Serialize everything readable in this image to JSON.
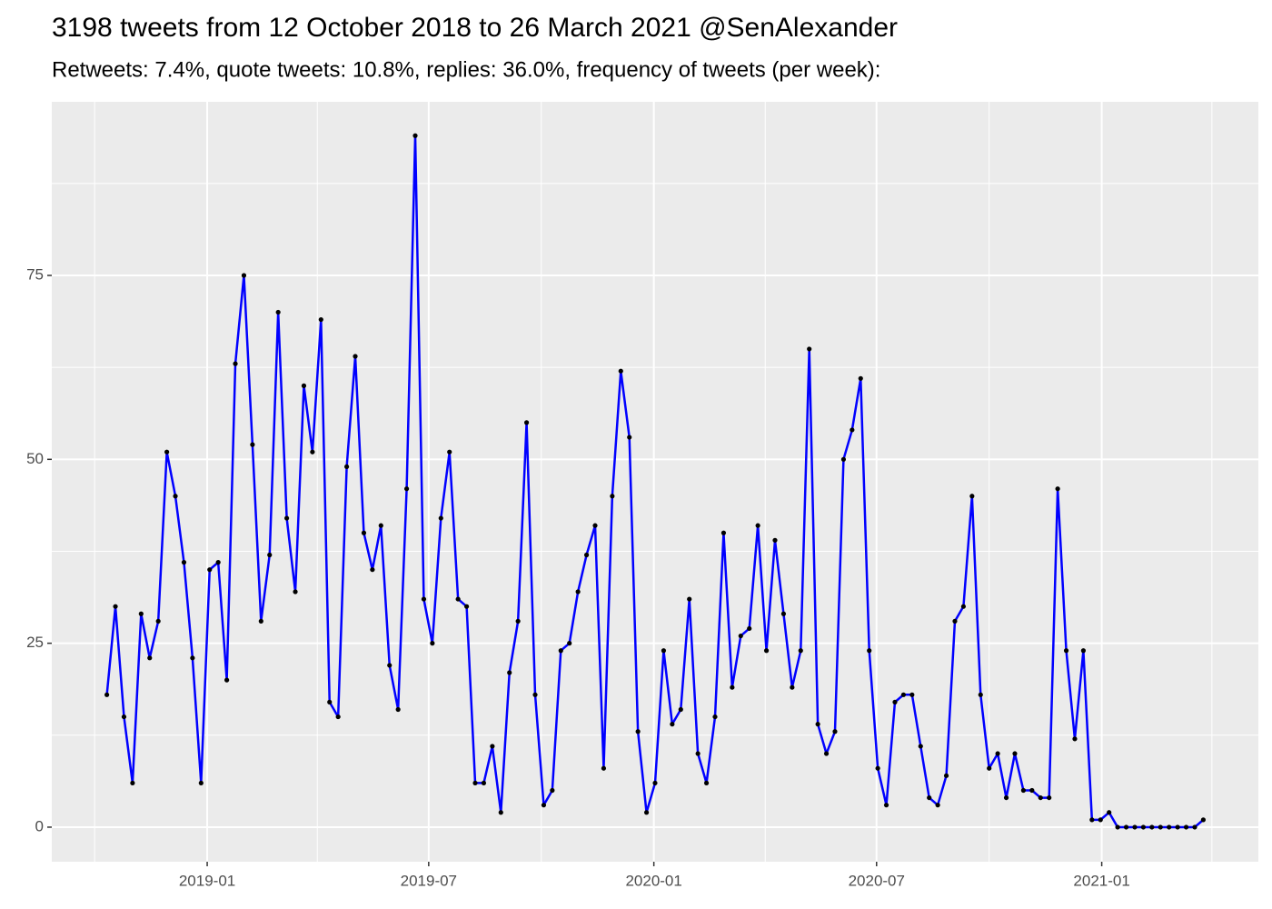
{
  "chart_data": {
    "type": "line",
    "title": "3198 tweets from 12 October 2018 to 26 March 2021 @SenAlexander",
    "subtitle": "Retweets: 7.4%, quote tweets: 10.8%, replies: 36.0%, frequency of tweets (per week):",
    "x": [
      "2018-10-11",
      "2018-10-18",
      "2018-10-25",
      "2018-11-01",
      "2018-11-08",
      "2018-11-15",
      "2018-11-22",
      "2018-11-29",
      "2018-12-06",
      "2018-12-13",
      "2018-12-20",
      "2018-12-27",
      "2019-01-03",
      "2019-01-10",
      "2019-01-17",
      "2019-01-24",
      "2019-01-31",
      "2019-02-07",
      "2019-02-14",
      "2019-02-21",
      "2019-02-28",
      "2019-03-07",
      "2019-03-14",
      "2019-03-21",
      "2019-03-28",
      "2019-04-04",
      "2019-04-11",
      "2019-04-18",
      "2019-04-25",
      "2019-05-02",
      "2019-05-09",
      "2019-05-16",
      "2019-05-23",
      "2019-05-30",
      "2019-06-06",
      "2019-06-13",
      "2019-06-20",
      "2019-06-27",
      "2019-07-04",
      "2019-07-11",
      "2019-07-18",
      "2019-07-25",
      "2019-08-01",
      "2019-08-08",
      "2019-08-15",
      "2019-08-22",
      "2019-08-29",
      "2019-09-05",
      "2019-09-12",
      "2019-09-19",
      "2019-09-26",
      "2019-10-03",
      "2019-10-10",
      "2019-10-17",
      "2019-10-24",
      "2019-10-31",
      "2019-11-07",
      "2019-11-14",
      "2019-11-21",
      "2019-11-28",
      "2019-12-05",
      "2019-12-12",
      "2019-12-19",
      "2019-12-26",
      "2020-01-02",
      "2020-01-09",
      "2020-01-16",
      "2020-01-23",
      "2020-01-30",
      "2020-02-06",
      "2020-02-13",
      "2020-02-20",
      "2020-02-27",
      "2020-03-05",
      "2020-03-12",
      "2020-03-19",
      "2020-03-26",
      "2020-04-02",
      "2020-04-09",
      "2020-04-16",
      "2020-04-23",
      "2020-04-30",
      "2020-05-07",
      "2020-05-14",
      "2020-05-21",
      "2020-05-28",
      "2020-06-04",
      "2020-06-11",
      "2020-06-18",
      "2020-06-25",
      "2020-07-02",
      "2020-07-09",
      "2020-07-16",
      "2020-07-23",
      "2020-07-30",
      "2020-08-06",
      "2020-08-13",
      "2020-08-20",
      "2020-08-27",
      "2020-09-03",
      "2020-09-10",
      "2020-09-17",
      "2020-09-24",
      "2020-10-01",
      "2020-10-08",
      "2020-10-15",
      "2020-10-22",
      "2020-10-29",
      "2020-11-05",
      "2020-11-12",
      "2020-11-19",
      "2020-11-26",
      "2020-12-03",
      "2020-12-10",
      "2020-12-17",
      "2020-12-24",
      "2020-12-31",
      "2021-01-07",
      "2021-01-14",
      "2021-01-21",
      "2021-01-28",
      "2021-02-04",
      "2021-02-11",
      "2021-02-18",
      "2021-02-25",
      "2021-03-04",
      "2021-03-11",
      "2021-03-18",
      "2021-03-25"
    ],
    "values": [
      18,
      30,
      15,
      6,
      29,
      23,
      28,
      51,
      45,
      36,
      23,
      6,
      35,
      36,
      20,
      63,
      75,
      52,
      28,
      37,
      70,
      42,
      32,
      60,
      51,
      69,
      17,
      15,
      49,
      64,
      40,
      35,
      41,
      22,
      16,
      46,
      94,
      31,
      25,
      42,
      51,
      31,
      30,
      6,
      6,
      11,
      2,
      21,
      28,
      55,
      18,
      3,
      5,
      24,
      25,
      32,
      37,
      41,
      8,
      45,
      62,
      53,
      13,
      2,
      6,
      24,
      14,
      16,
      31,
      10,
      6,
      15,
      40,
      19,
      26,
      27,
      41,
      24,
      39,
      29,
      19,
      24,
      65,
      14,
      10,
      13,
      50,
      54,
      61,
      24,
      8,
      3,
      17,
      18,
      18,
      11,
      4,
      3,
      7,
      28,
      30,
      45,
      18,
      8,
      10,
      4,
      10,
      5,
      5,
      4,
      4,
      46,
      24,
      12,
      24,
      1,
      1,
      2,
      0,
      0,
      0,
      0,
      0,
      0,
      0,
      0,
      0,
      0,
      1
    ],
    "color": "#0000ff",
    "point_color": "#000000",
    "xlim": [
      "2018-08-27",
      "2021-05-09"
    ],
    "xticks": [
      {
        "value": "2019-01-01",
        "label": "2019-01"
      },
      {
        "value": "2019-07-01",
        "label": "2019-07"
      },
      {
        "value": "2020-01-01",
        "label": "2020-01"
      },
      {
        "value": "2020-07-01",
        "label": "2020-07"
      },
      {
        "value": "2021-01-01",
        "label": "2021-01"
      }
    ],
    "x_minor_ticks": [
      "2018-10-01",
      "2019-04-01",
      "2019-10-01",
      "2020-04-01",
      "2020-10-01",
      "2021-04-01"
    ],
    "ylim": [
      -4.7,
      98.6
    ],
    "yticks": [
      0,
      25,
      50,
      75
    ],
    "y_minor_ticks": [
      12.5,
      37.5,
      62.5,
      87.5
    ],
    "grid": true
  }
}
